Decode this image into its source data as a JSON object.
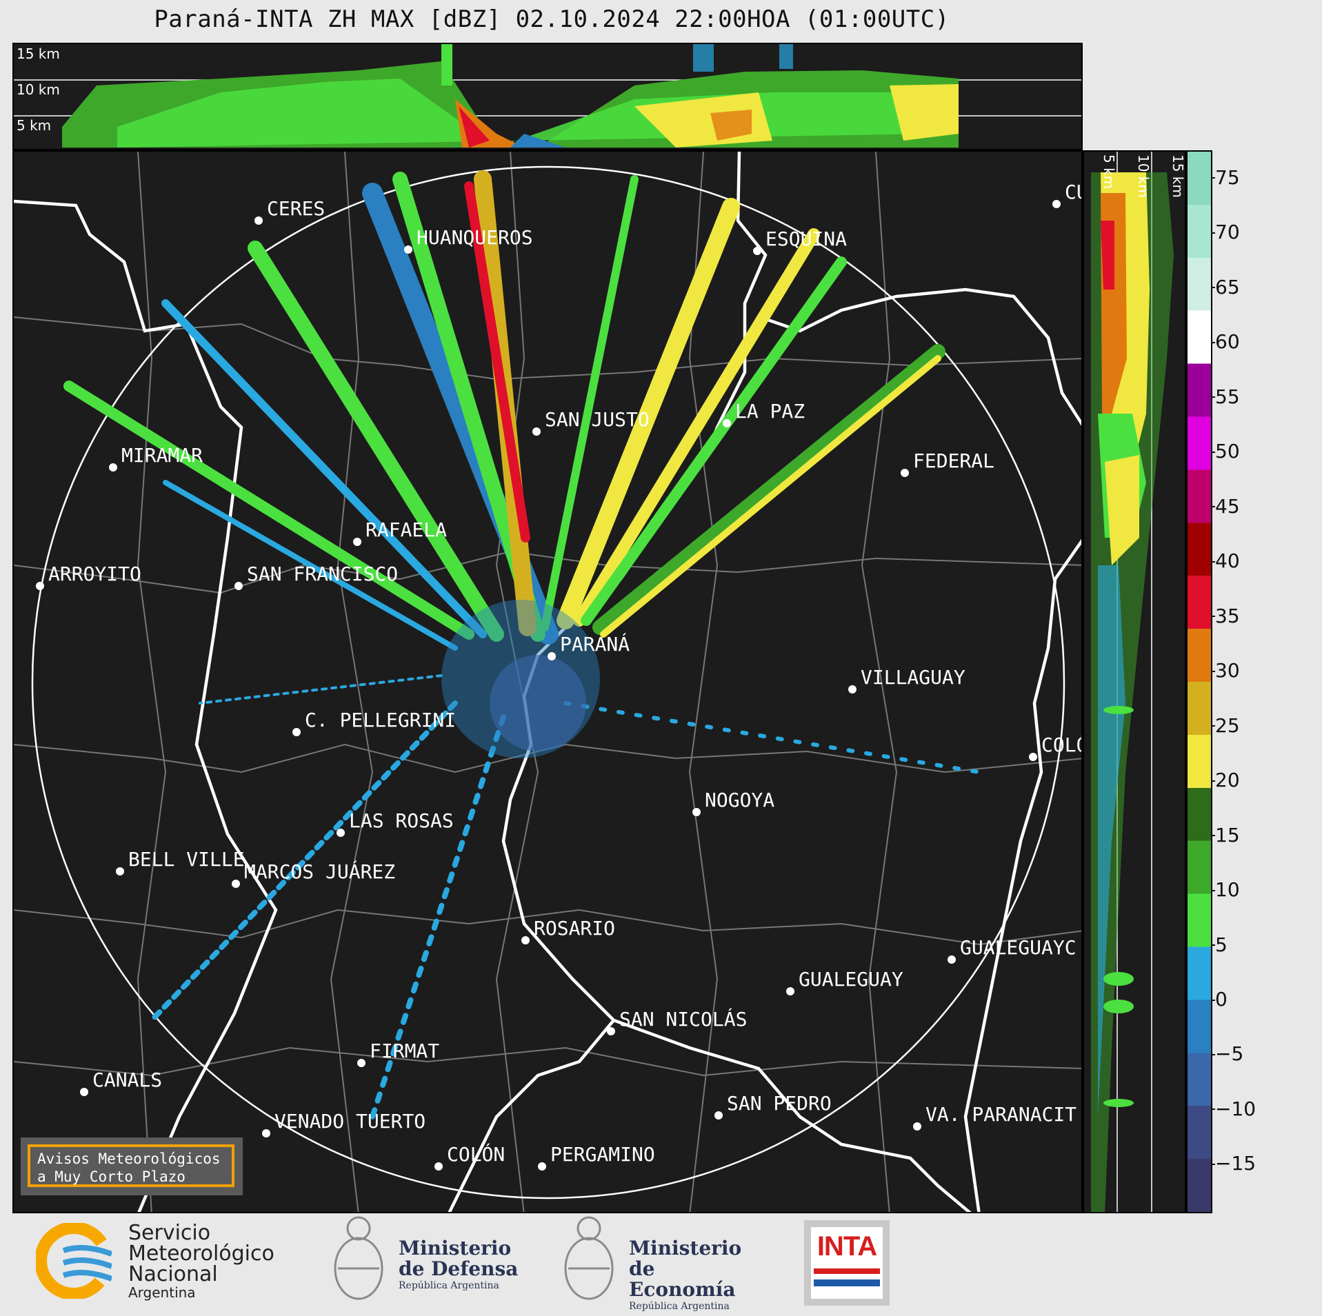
{
  "title": "Paraná-INTA ZH MAX [dBZ] 02.10.2024 22:00HOA (01:00UTC)",
  "top_panel": {
    "height_labels": [
      "15 km",
      "10 km",
      "5 km"
    ]
  },
  "side_panel": {
    "height_labels": [
      "5 km",
      "10 km",
      "15 km"
    ]
  },
  "cities": [
    {
      "name": "CERES"
    },
    {
      "name": "HUANQUEROS"
    },
    {
      "name": "ESQUINA"
    },
    {
      "name": "CU"
    },
    {
      "name": "LA PAZ"
    },
    {
      "name": "SAN JUSTO"
    },
    {
      "name": "MIRAMAR"
    },
    {
      "name": "FEDERAL"
    },
    {
      "name": "RAFAELA"
    },
    {
      "name": "ARROYITO"
    },
    {
      "name": "SAN FRANCISCO"
    },
    {
      "name": "PARANÁ"
    },
    {
      "name": "VILLAGUAY"
    },
    {
      "name": "C. PELLEGRINI"
    },
    {
      "name": "COLÓ"
    },
    {
      "name": "NOGOYA"
    },
    {
      "name": "LAS ROSAS"
    },
    {
      "name": "BELL VILLE"
    },
    {
      "name": "MARCOS JUÁREZ"
    },
    {
      "name": "ROSARIO"
    },
    {
      "name": "GUALEGUAYC"
    },
    {
      "name": "GUALEGUAY"
    },
    {
      "name": "SAN NICOLÁS"
    },
    {
      "name": "FIRMAT"
    },
    {
      "name": "CANALS"
    },
    {
      "name": "SAN PEDRO"
    },
    {
      "name": "VENADO TUERTO"
    },
    {
      "name": "VA. PARANACIT"
    },
    {
      "name": "COLÓN"
    },
    {
      "name": "PERGAMINO"
    }
  ],
  "colorbar": {
    "ticks": [
      "75",
      "70",
      "65",
      "60",
      "55",
      "50",
      "45",
      "40",
      "35",
      "30",
      "25",
      "20",
      "15",
      "10",
      "5",
      "0",
      "−5",
      "−10",
      "−15"
    ],
    "stops": [
      "#8ad9c0",
      "#a8e6cf",
      "#cfeee2",
      "#ffffff",
      "#9b009b",
      "#e000e0",
      "#c0006a",
      "#a00000",
      "#e0102a",
      "#e07a10",
      "#d4b020",
      "#f0e840",
      "#2e6b1a",
      "#3ea82a",
      "#4be040",
      "#2aa8e0",
      "#2a80c0",
      "#3a68a8",
      "#3e4a84",
      "#3a3a6a"
    ]
  },
  "avisos": {
    "line1": "Avisos Meteorológicos",
    "line2": "a Muy Corto Plazo"
  },
  "logos": {
    "smn": {
      "line1": "Servicio",
      "line2": "Meteorológico",
      "line3": "Nacional",
      "line4": "Argentina"
    },
    "defensa": {
      "line1": "Ministerio",
      "line2": "de Defensa",
      "line3": "República Argentina"
    },
    "economia": {
      "line1": "Ministerio",
      "line2": "de Economía",
      "line3": "República Argentina"
    },
    "inta": {
      "text": "INTA"
    }
  }
}
